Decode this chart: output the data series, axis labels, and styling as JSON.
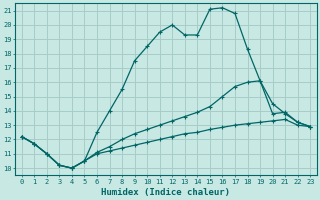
{
  "title": "",
  "xlabel": "Humidex (Indice chaleur)",
  "bg_color": "#c8e8e4",
  "grid_color": "#a8ccc8",
  "line_color": "#006666",
  "xlim": [
    -0.5,
    23.5
  ],
  "ylim": [
    9.5,
    21.5
  ],
  "xticks": [
    0,
    1,
    2,
    3,
    4,
    5,
    6,
    7,
    8,
    9,
    10,
    11,
    12,
    13,
    14,
    15,
    16,
    17,
    18,
    19,
    20,
    21,
    22,
    23
  ],
  "yticks": [
    10,
    11,
    12,
    13,
    14,
    15,
    16,
    17,
    18,
    19,
    20,
    21
  ],
  "line1_x": [
    0,
    1,
    2,
    3,
    4,
    5,
    6,
    7,
    8,
    9,
    10,
    11,
    12,
    13,
    14,
    15,
    16,
    17,
    18,
    19,
    20,
    21,
    22,
    23
  ],
  "line1_y": [
    12.2,
    11.7,
    11.0,
    10.2,
    10.0,
    10.5,
    12.5,
    14.0,
    15.5,
    17.5,
    18.5,
    19.5,
    20.0,
    19.3,
    19.3,
    21.1,
    21.2,
    20.8,
    18.3,
    16.1,
    13.8,
    13.9,
    13.2,
    12.9
  ],
  "line2_x": [
    0,
    1,
    2,
    3,
    4,
    5,
    6,
    7,
    8,
    9,
    10,
    11,
    12,
    13,
    14,
    15,
    16,
    17,
    18,
    19,
    20,
    21,
    22,
    23
  ],
  "line2_y": [
    12.2,
    11.7,
    11.0,
    10.2,
    10.0,
    10.5,
    11.1,
    11.5,
    12.0,
    12.4,
    12.7,
    13.0,
    13.3,
    13.6,
    13.9,
    14.3,
    15.0,
    15.7,
    16.0,
    16.1,
    14.5,
    13.8,
    13.2,
    12.9
  ],
  "line3_x": [
    0,
    1,
    2,
    3,
    4,
    5,
    6,
    7,
    8,
    9,
    10,
    11,
    12,
    13,
    14,
    15,
    16,
    17,
    18,
    19,
    20,
    21,
    22,
    23
  ],
  "line3_y": [
    12.2,
    11.7,
    11.0,
    10.2,
    10.0,
    10.5,
    11.0,
    11.2,
    11.4,
    11.6,
    11.8,
    12.0,
    12.2,
    12.4,
    12.5,
    12.7,
    12.85,
    13.0,
    13.1,
    13.2,
    13.3,
    13.4,
    13.0,
    12.9
  ]
}
